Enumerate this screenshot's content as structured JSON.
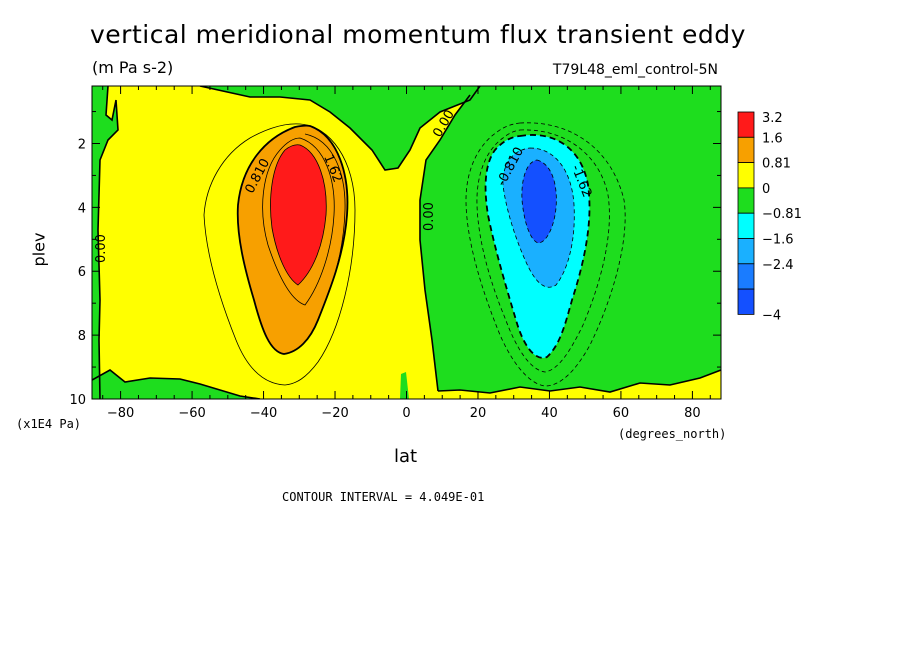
{
  "chart_data": {
    "type": "heatmap",
    "title": "vertical meridional momentum flux transient eddy",
    "subtitle": "(m Pa s-2)",
    "dataset": "T79L48_eml_control-5N",
    "xlabel": "lat",
    "x_unit": "(degrees_north)",
    "ylabel": "plev",
    "y_unit": "(x1E4 Pa)",
    "xlim": [
      -88,
      88
    ],
    "ylim": [
      10,
      0.2
    ],
    "x_ticks": [
      -80,
      -60,
      -40,
      -20,
      0,
      20,
      40,
      60,
      80
    ],
    "y_ticks": [
      2,
      4,
      6,
      8,
      10
    ],
    "contour_interval_text": "CONTOUR INTERVAL = 4.049E-01",
    "colorbar": {
      "labels": [
        "3.2",
        "1.6",
        "0.81",
        "0",
        "−0.81",
        "−1.6",
        "−2.4",
        "−4"
      ],
      "colors": [
        "#ff1a1a",
        "#f7a000",
        "#ffff00",
        "#1edd1e",
        "#00ffff",
        "#1ab0ff",
        "#1a7cff",
        "#1450ff"
      ]
    },
    "features": [
      {
        "name": "positive maximum",
        "lat": -32,
        "plev": 4.0,
        "value_range": ">1.62"
      },
      {
        "name": "negative minimum",
        "lat": 36,
        "plev": 3.5,
        "value_range": "<-2.4"
      }
    ],
    "contour_labels": [
      "0.810",
      "1.62",
      "0.00",
      "0.00",
      "0.00",
      "-0.810",
      "-1.62"
    ]
  },
  "colors": {
    "background": "#ffffff",
    "positive_low": "#ffff00",
    "positive_mid": "#f7a000",
    "positive_high": "#ff1a1a",
    "negative_low": "#1edd1e",
    "negative_mid": "#00ffff",
    "negative_high": "#1ab0ff",
    "negative_max": "#1450ff"
  }
}
